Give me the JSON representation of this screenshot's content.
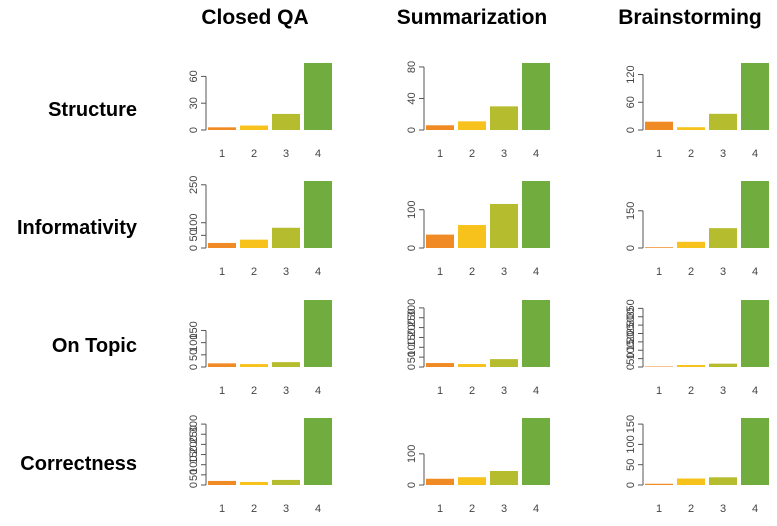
{
  "column_titles": [
    "Closed QA",
    "Summarization",
    "Brainstorming"
  ],
  "row_labels": [
    "Structure",
    "Informativity",
    "On Topic",
    "Correctness"
  ],
  "colors": {
    "1": "#f08a24",
    "2": "#f7c21b",
    "3": "#b5bd2e",
    "4": "#70ad3e",
    "axis": "#555555"
  },
  "chart_data": [
    {
      "type": "bar",
      "row": "Structure",
      "column": "Closed QA",
      "categories": [
        "1",
        "2",
        "3",
        "4"
      ],
      "values": [
        3,
        5,
        18,
        75
      ],
      "yticks": [
        0,
        30,
        60
      ],
      "ylim": [
        0,
        75
      ]
    },
    {
      "type": "bar",
      "row": "Structure",
      "column": "Summarization",
      "categories": [
        "1",
        "2",
        "3",
        "4"
      ],
      "values": [
        6,
        11,
        30,
        85
      ],
      "yticks": [
        0,
        40,
        80
      ],
      "ylim": [
        0,
        85
      ]
    },
    {
      "type": "bar",
      "row": "Structure",
      "column": "Brainstorming",
      "categories": [
        "1",
        "2",
        "3",
        "4"
      ],
      "values": [
        18,
        6,
        35,
        145
      ],
      "yticks": [
        0,
        60,
        120
      ],
      "ylim": [
        0,
        145
      ]
    },
    {
      "type": "bar",
      "row": "Informativity",
      "column": "Closed QA",
      "categories": [
        "1",
        "2",
        "3",
        "4"
      ],
      "values": [
        20,
        33,
        80,
        265
      ],
      "yticks": [
        0,
        50,
        100,
        250
      ],
      "ylim": [
        0,
        265
      ]
    },
    {
      "type": "bar",
      "row": "Informativity",
      "column": "Summarization",
      "categories": [
        "1",
        "2",
        "3",
        "4"
      ],
      "values": [
        35,
        60,
        115,
        175
      ],
      "yticks": [
        0,
        100
      ],
      "ylim": [
        0,
        175
      ]
    },
    {
      "type": "bar",
      "row": "Informativity",
      "column": "Brainstorming",
      "categories": [
        "1",
        "2",
        "3",
        "4"
      ],
      "values": [
        3,
        25,
        80,
        270
      ],
      "yticks": [
        0,
        150
      ],
      "ylim": [
        0,
        270
      ]
    },
    {
      "type": "bar",
      "row": "On Topic",
      "column": "Closed QA",
      "categories": [
        "1",
        "2",
        "3",
        "4"
      ],
      "values": [
        15,
        12,
        20,
        275
      ],
      "yticks": [
        0,
        50,
        100,
        150
      ],
      "ylim": [
        0,
        275
      ]
    },
    {
      "type": "bar",
      "row": "On Topic",
      "column": "Summarization",
      "categories": [
        "1",
        "2",
        "3",
        "4"
      ],
      "values": [
        20,
        15,
        40,
        340
      ],
      "yticks": [
        0,
        50,
        100,
        150,
        200,
        250,
        300
      ],
      "ylim": [
        0,
        340
      ]
    },
    {
      "type": "bar",
      "row": "On Topic",
      "column": "Brainstorming",
      "categories": [
        "1",
        "2",
        "3",
        "4"
      ],
      "values": [
        3,
        12,
        20,
        400
      ],
      "yticks": [
        0,
        50,
        100,
        150,
        200,
        250,
        300,
        350
      ],
      "ylim": [
        0,
        400
      ]
    },
    {
      "type": "bar",
      "row": "Correctness",
      "column": "Closed QA",
      "categories": [
        "1",
        "2",
        "3",
        "4"
      ],
      "values": [
        20,
        15,
        25,
        330
      ],
      "yticks": [
        0,
        50,
        100,
        150,
        200,
        250,
        300
      ],
      "ylim": [
        0,
        330
      ]
    },
    {
      "type": "bar",
      "row": "Correctness",
      "column": "Summarization",
      "categories": [
        "1",
        "2",
        "3",
        "4"
      ],
      "values": [
        20,
        25,
        45,
        215
      ],
      "yticks": [
        0,
        100
      ],
      "ylim": [
        0,
        215
      ]
    },
    {
      "type": "bar",
      "row": "Correctness",
      "column": "Brainstorming",
      "categories": [
        "1",
        "2",
        "3",
        "4"
      ],
      "values": [
        3,
        16,
        19,
        165
      ],
      "yticks": [
        0,
        50,
        100,
        150
      ],
      "ylim": [
        0,
        165
      ]
    }
  ]
}
